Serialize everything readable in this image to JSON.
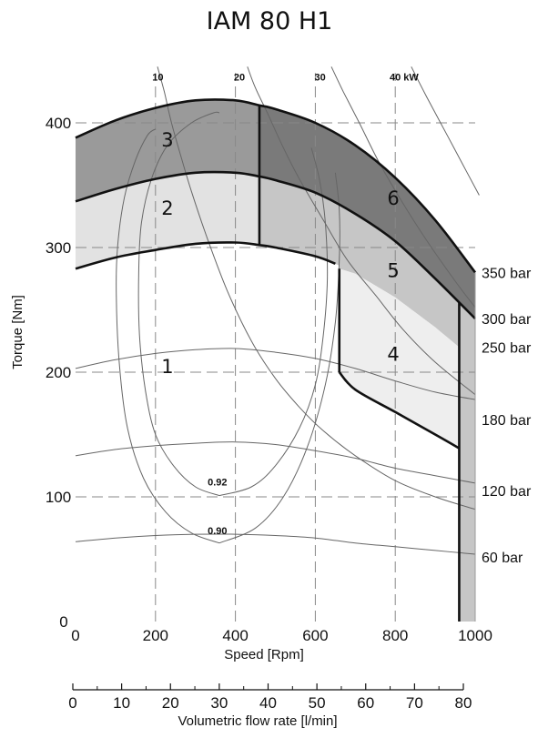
{
  "chart_data": {
    "type": "line",
    "title": "IAM 80 H1",
    "xlabel": "Speed [Rpm]",
    "ylabel": "Torque [Nm]",
    "x2label": "Volumetric flow rate [l/min]",
    "xlim": [
      0,
      1000
    ],
    "ylim": [
      0,
      420
    ],
    "x_ticks": [
      0,
      200,
      400,
      600,
      800,
      1000
    ],
    "y_ticks": [
      0,
      100,
      200,
      300,
      400
    ],
    "x2_ticks": [
      0,
      10,
      20,
      30,
      40,
      50,
      60,
      70,
      80
    ],
    "x2lim": [
      0,
      80
    ],
    "grid": true,
    "zones": [
      {
        "label": "1",
        "x": 230,
        "y": 205,
        "color": "#ffffff"
      },
      {
        "label": "2",
        "x": 230,
        "y": 332,
        "color": "#e2e2e2"
      },
      {
        "label": "3",
        "x": 230,
        "y": 387,
        "color": "#9a9a9a"
      },
      {
        "label": "4",
        "x": 795,
        "y": 215,
        "color": "#eeeeee"
      },
      {
        "label": "5",
        "x": 795,
        "y": 282,
        "color": "#c6c6c6"
      },
      {
        "label": "6",
        "x": 795,
        "y": 340,
        "color": "#7a7a7a"
      }
    ],
    "boundaries": {
      "upper": {
        "x": [
          0,
          100,
          200,
          300,
          400,
          460,
          500,
          600,
          700,
          800,
          900,
          1000
        ],
        "y": [
          388,
          402,
          412,
          418,
          418,
          414,
          411,
          400,
          382,
          356,
          322,
          280
        ]
      },
      "middle": {
        "x": [
          0,
          100,
          200,
          300,
          400,
          460,
          500,
          600,
          700,
          800,
          900,
          1000
        ],
        "y": [
          337,
          347,
          355,
          360,
          360,
          357,
          354,
          344,
          327,
          305,
          275,
          243
        ]
      },
      "lower": {
        "x": [
          0,
          100,
          200,
          300,
          400,
          460,
          500,
          600,
          650,
          700,
          800,
          900,
          960
        ],
        "y": [
          283,
          292,
          298,
          303,
          304,
          302,
          300,
          293,
          287,
          279,
          260,
          236,
          220
        ]
      },
      "zone4_top": {
        "x": [
          660,
          700,
          800,
          900,
          960
        ],
        "y": [
          283,
          279,
          260,
          236,
          220
        ]
      },
      "zone4_bottom": {
        "x": [
          660,
          700,
          800,
          900,
          960
        ],
        "y": [
          200,
          186,
          168,
          150,
          139
        ]
      },
      "right_limit_x": 960,
      "left_zone_limit_x": 460,
      "zone4_left_x": 660
    },
    "pressure_curves": [
      {
        "label": "350 bar",
        "label_y": 280
      },
      {
        "label": "300 bar",
        "label_y": 243
      },
      {
        "label": "250 bar",
        "label_y": 220
      },
      {
        "label": "180 bar",
        "label_y": 162
      },
      {
        "label": "120 bar",
        "label_y": 105
      },
      {
        "label": "60 bar",
        "label_y": 52
      }
    ],
    "pressure_lines": [
      {
        "x": [
          0,
          100,
          200,
          300,
          400,
          500,
          600,
          700,
          800,
          900,
          1000
        ],
        "y": [
          203,
          210,
          215,
          218,
          219,
          216,
          211,
          203,
          193,
          184,
          178
        ]
      },
      {
        "x": [
          0,
          100,
          200,
          300,
          400,
          500,
          600,
          700,
          800,
          900,
          1000
        ],
        "y": [
          133,
          138,
          141,
          143,
          144,
          142,
          137,
          131,
          123,
          117,
          111
        ]
      },
      {
        "x": [
          0,
          100,
          200,
          300,
          400,
          500,
          600,
          700,
          800,
          900,
          1000
        ],
        "y": [
          64,
          67,
          69,
          70,
          70,
          69,
          67,
          63,
          60,
          57,
          54
        ]
      }
    ],
    "power_curves": [
      {
        "label": "10",
        "label_x": 206,
        "label_y": 445,
        "x": [
          205,
          222,
          240,
          262,
          290,
          330,
          380,
          440,
          500,
          560,
          620,
          700,
          800,
          900,
          1000
        ],
        "y": [
          445,
          425,
          400,
          375,
          345,
          307,
          265,
          225,
          195,
          172,
          153,
          133,
          113,
          100,
          90
        ]
      },
      {
        "label": "20",
        "label_x": 410,
        "label_y": 445,
        "x": [
          430,
          450,
          480,
          520,
          560,
          620,
          680,
          750,
          820,
          900,
          1000
        ],
        "y": [
          445,
          428,
          408,
          380,
          355,
          322,
          290,
          262,
          234,
          208,
          182
        ]
      },
      {
        "label": "30",
        "label_x": 612,
        "label_y": 445,
        "x": [
          640,
          670,
          710,
          760,
          820,
          880,
          950,
          1000
        ],
        "y": [
          445,
          425,
          400,
          368,
          335,
          305,
          273,
          252
        ]
      },
      {
        "label": "40 kW",
        "label_x": 822,
        "label_y": 445,
        "x": [
          840,
          880,
          930,
          980,
          1010
        ],
        "y": [
          445,
          420,
          390,
          360,
          342
        ]
      }
    ],
    "efficiency_curves": [
      {
        "label": "0.92",
        "label_x": 355,
        "label_y": 107,
        "x": [
          360,
          300,
          245,
          200,
          175,
          160,
          158,
          165,
          190,
          230,
          290,
          345,
          360
        ],
        "y": [
          101,
          108,
          125,
          150,
          185,
          230,
          280,
          320,
          355,
          382,
          400,
          408,
          408
        ]
      },
      {
        "label": "0.90",
        "label_x": 355,
        "label_y": 68,
        "x": [
          360,
          290,
          225,
          170,
          130,
          110,
          102,
          105,
          122,
          150,
          180,
          200
        ],
        "y": [
          63,
          71,
          88,
          115,
          155,
          205,
          260,
          300,
          340,
          370,
          390,
          395
        ]
      },
      {
        "x": [
          360,
          440,
          500,
          560,
          600,
          620,
          630,
          625,
          610,
          590
        ],
        "y": [
          101,
          108,
          125,
          155,
          190,
          230,
          275,
          320,
          355,
          380
        ]
      },
      {
        "x": [
          360,
          450,
          520,
          580,
          625,
          650,
          660,
          660,
          650
        ],
        "y": [
          63,
          75,
          100,
          140,
          190,
          240,
          290,
          330,
          360
        ]
      }
    ]
  }
}
